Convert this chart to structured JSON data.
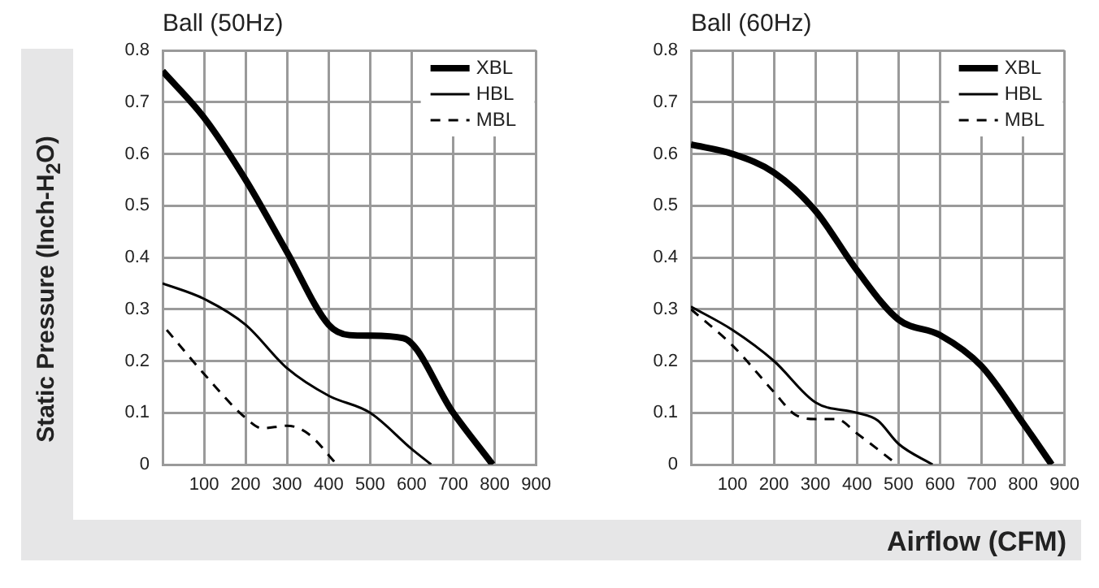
{
  "chart_data": [
    {
      "type": "line",
      "title": "Ball (50Hz)",
      "ylabel": "Static Pressure (Inch-H$_{2}$O)",
      "xlim": [
        0,
        900
      ],
      "xticks": [
        100,
        200,
        300,
        400,
        500,
        600,
        700,
        800,
        900
      ],
      "ylim": [
        0,
        0.8
      ],
      "yticks": [
        0,
        0.1,
        0.2,
        0.3,
        0.4,
        0.5,
        0.6,
        0.7,
        0.8
      ],
      "grid": true,
      "legend": "top right",
      "marker": "none",
      "series": [
        {
          "name": "XBL",
          "color": "#000000",
          "line_style": "solid",
          "x": [
            0,
            100,
            200,
            300,
            400,
            450,
            500,
            580,
            700,
            795
          ],
          "values": [
            0.76,
            0.67,
            0.55,
            0.41,
            0.27,
            0.25,
            0.249,
            0.244,
            0.1,
            0
          ]
        },
        {
          "name": "HBL",
          "color": "#000000",
          "line_style": "solid",
          "x": [
            0,
            100,
            200,
            300,
            400,
            500,
            600,
            647
          ],
          "values": [
            0.35,
            0.32,
            0.27,
            0.186,
            0.133,
            0.1,
            0.03,
            0
          ]
        },
        {
          "name": "MBL",
          "color": "#000000",
          "line_style": "dashed",
          "x": [
            10,
            100,
            200,
            240,
            300,
            350,
            420
          ],
          "values": [
            0.26,
            0.175,
            0.09,
            0.07,
            0.075,
            0.06,
            0
          ]
        }
      ]
    },
    {
      "type": "line",
      "title": "Ball (60Hz)",
      "xlabel": "Airflow (CFM)",
      "xlim": [
        0,
        900
      ],
      "xticks": [
        100,
        200,
        300,
        400,
        500,
        600,
        700,
        800,
        900
      ],
      "ylim": [
        0,
        0.8
      ],
      "yticks": [
        0,
        0.1,
        0.2,
        0.3,
        0.4,
        0.5,
        0.6,
        0.7,
        0.8
      ],
      "grid": true,
      "legend": "top right",
      "marker": "none",
      "series": [
        {
          "name": "XBL",
          "color": "#000000",
          "line_style": "solid",
          "x": [
            0,
            100,
            200,
            300,
            400,
            500,
            600,
            700,
            800,
            869
          ],
          "values": [
            0.618,
            0.6,
            0.564,
            0.49,
            0.375,
            0.28,
            0.25,
            0.19,
            0.08,
            0
          ]
        },
        {
          "name": "HBL",
          "color": "#000000",
          "line_style": "solid",
          "x": [
            0,
            100,
            200,
            300,
            400,
            450,
            500,
            582
          ],
          "values": [
            0.305,
            0.26,
            0.2,
            0.12,
            0.1,
            0.085,
            0.04,
            0
          ]
        },
        {
          "name": "MBL",
          "color": "#000000",
          "line_style": "dashed",
          "x": [
            0,
            100,
            200,
            250,
            300,
            350,
            400,
            497
          ],
          "values": [
            0.3,
            0.23,
            0.14,
            0.097,
            0.088,
            0.088,
            0.06,
            0
          ]
        }
      ]
    }
  ]
}
